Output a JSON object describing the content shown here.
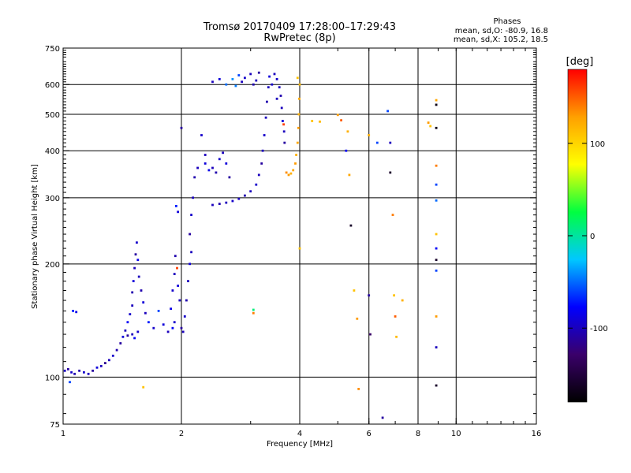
{
  "chart_data": {
    "type": "scatter",
    "title": "Tromsø 20170409 17:28:00–17:29:43",
    "subtitle": "RwPretec (8p)",
    "phase_box": {
      "title": "Phases",
      "line1": "mean, sd,O: -80.9, 16.8",
      "line2": "mean, sd,X: 105.2, 18.5"
    },
    "xlabel": "Frequency [MHz]",
    "ylabel": "Stationary phase Virtual Height [km]",
    "x_scale": "log",
    "y_scale": "log",
    "xlim": [
      1,
      16
    ],
    "ylim": [
      75,
      750
    ],
    "x_ticks": [
      {
        "value": 1,
        "label": "1"
      },
      {
        "value": 2,
        "label": "2"
      },
      {
        "value": 4,
        "label": "4"
      },
      {
        "value": 6,
        "label": "6"
      },
      {
        "value": 8,
        "label": "8"
      },
      {
        "value": 10,
        "label": "10"
      },
      {
        "value": 16,
        "label": "16"
      }
    ],
    "x_gridlines": [
      2,
      4,
      6,
      8,
      10
    ],
    "y_ticks": [
      {
        "value": 75,
        "label": "75"
      },
      {
        "value": 100,
        "label": "100"
      },
      {
        "value": 200,
        "label": "200"
      },
      {
        "value": 300,
        "label": "300"
      },
      {
        "value": 400,
        "label": "400"
      },
      {
        "value": 500,
        "label": "500"
      },
      {
        "value": 600,
        "label": "600"
      },
      {
        "value": 750,
        "label": "750"
      }
    ],
    "y_gridlines": [
      100,
      200,
      300,
      400,
      500,
      600
    ],
    "grid": true,
    "colorbar": {
      "label": "[deg]",
      "vmin": -180,
      "vmax": 180,
      "ticks": [
        {
          "value": 100,
          "label": "100"
        },
        {
          "value": 0,
          "label": "0"
        },
        {
          "value": -100,
          "label": "-100"
        }
      ],
      "stops": [
        "#000000",
        "#3a006a",
        "#0000ff",
        "#00c8ff",
        "#00ff40",
        "#ffff00",
        "#ffa000",
        "#ff0000"
      ]
    },
    "points": [
      {
        "x": 1.01,
        "y": 104,
        "phase": -100
      },
      {
        "x": 1.03,
        "y": 105,
        "phase": -110
      },
      {
        "x": 1.05,
        "y": 103,
        "phase": -95
      },
      {
        "x": 1.07,
        "y": 102,
        "phase": -105
      },
      {
        "x": 1.04,
        "y": 97,
        "phase": -60
      },
      {
        "x": 1.06,
        "y": 150,
        "phase": -70
      },
      {
        "x": 1.08,
        "y": 149,
        "phase": -85
      },
      {
        "x": 1.1,
        "y": 104,
        "phase": -105
      },
      {
        "x": 1.13,
        "y": 103,
        "phase": -95
      },
      {
        "x": 1.16,
        "y": 102,
        "phase": -100
      },
      {
        "x": 1.19,
        "y": 104,
        "phase": -110
      },
      {
        "x": 1.22,
        "y": 106,
        "phase": -90
      },
      {
        "x": 1.25,
        "y": 107,
        "phase": -100
      },
      {
        "x": 1.28,
        "y": 109,
        "phase": -115
      },
      {
        "x": 1.31,
        "y": 111,
        "phase": -100
      },
      {
        "x": 1.34,
        "y": 114,
        "phase": -95
      },
      {
        "x": 1.37,
        "y": 118,
        "phase": -105
      },
      {
        "x": 1.4,
        "y": 123,
        "phase": -110
      },
      {
        "x": 1.42,
        "y": 128,
        "phase": -90
      },
      {
        "x": 1.44,
        "y": 133,
        "phase": -100
      },
      {
        "x": 1.46,
        "y": 140,
        "phase": -80
      },
      {
        "x": 1.48,
        "y": 147,
        "phase": -95
      },
      {
        "x": 1.5,
        "y": 155,
        "phase": -100
      },
      {
        "x": 1.5,
        "y": 168,
        "phase": -105
      },
      {
        "x": 1.51,
        "y": 180,
        "phase": -90
      },
      {
        "x": 1.52,
        "y": 195,
        "phase": -100
      },
      {
        "x": 1.53,
        "y": 212,
        "phase": -110
      },
      {
        "x": 1.54,
        "y": 228,
        "phase": -95
      },
      {
        "x": 1.55,
        "y": 205,
        "phase": -85
      },
      {
        "x": 1.56,
        "y": 185,
        "phase": -100
      },
      {
        "x": 1.58,
        "y": 170,
        "phase": -105
      },
      {
        "x": 1.6,
        "y": 158,
        "phase": -90
      },
      {
        "x": 1.5,
        "y": 130,
        "phase": -100
      },
      {
        "x": 1.52,
        "y": 127,
        "phase": -80
      },
      {
        "x": 1.46,
        "y": 129,
        "phase": -110
      },
      {
        "x": 1.55,
        "y": 132,
        "phase": -95
      },
      {
        "x": 1.62,
        "y": 148,
        "phase": -100
      },
      {
        "x": 1.65,
        "y": 140,
        "phase": -70
      },
      {
        "x": 1.7,
        "y": 135,
        "phase": -95
      },
      {
        "x": 1.75,
        "y": 150,
        "phase": -60
      },
      {
        "x": 1.8,
        "y": 138,
        "phase": -90
      },
      {
        "x": 1.85,
        "y": 132,
        "phase": -100
      },
      {
        "x": 1.88,
        "y": 152,
        "phase": -85
      },
      {
        "x": 1.9,
        "y": 170,
        "phase": -95
      },
      {
        "x": 1.92,
        "y": 188,
        "phase": -100
      },
      {
        "x": 1.93,
        "y": 210,
        "phase": -105
      },
      {
        "x": 1.95,
        "y": 195,
        "phase": 160
      },
      {
        "x": 1.96,
        "y": 175,
        "phase": -90
      },
      {
        "x": 1.98,
        "y": 160,
        "phase": -100
      },
      {
        "x": 1.92,
        "y": 140,
        "phase": -95
      },
      {
        "x": 1.9,
        "y": 135,
        "phase": -80
      },
      {
        "x": 1.94,
        "y": 285,
        "phase": -70
      },
      {
        "x": 1.96,
        "y": 275,
        "phase": -90
      },
      {
        "x": 2.0,
        "y": 135,
        "phase": -110
      },
      {
        "x": 2.02,
        "y": 132,
        "phase": -100
      },
      {
        "x": 2.04,
        "y": 145,
        "phase": -95
      },
      {
        "x": 2.06,
        "y": 160,
        "phase": -105
      },
      {
        "x": 2.08,
        "y": 180,
        "phase": -100
      },
      {
        "x": 2.1,
        "y": 200,
        "phase": -90
      },
      {
        "x": 2.12,
        "y": 215,
        "phase": -100
      },
      {
        "x": 2.1,
        "y": 240,
        "phase": -110
      },
      {
        "x": 2.12,
        "y": 270,
        "phase": -95
      },
      {
        "x": 2.14,
        "y": 300,
        "phase": -100
      },
      {
        "x": 2.16,
        "y": 340,
        "phase": -105
      },
      {
        "x": 2.2,
        "y": 360,
        "phase": -100
      },
      {
        "x": 2.0,
        "y": 460,
        "phase": -110
      },
      {
        "x": 2.25,
        "y": 440,
        "phase": -95
      },
      {
        "x": 2.3,
        "y": 390,
        "phase": -100
      },
      {
        "x": 2.3,
        "y": 370,
        "phase": -90
      },
      {
        "x": 2.35,
        "y": 355,
        "phase": -85
      },
      {
        "x": 2.4,
        "y": 360,
        "phase": -100
      },
      {
        "x": 2.45,
        "y": 350,
        "phase": -105
      },
      {
        "x": 2.5,
        "y": 380,
        "phase": -95
      },
      {
        "x": 2.55,
        "y": 395,
        "phase": -100
      },
      {
        "x": 2.6,
        "y": 370,
        "phase": -90
      },
      {
        "x": 2.65,
        "y": 340,
        "phase": -110
      },
      {
        "x": 2.4,
        "y": 287,
        "phase": -100
      },
      {
        "x": 2.5,
        "y": 289,
        "phase": -105
      },
      {
        "x": 2.6,
        "y": 291,
        "phase": -100
      },
      {
        "x": 2.7,
        "y": 294,
        "phase": -95
      },
      {
        "x": 2.8,
        "y": 298,
        "phase": -100
      },
      {
        "x": 2.9,
        "y": 304,
        "phase": -105
      },
      {
        "x": 3.0,
        "y": 312,
        "phase": -100
      },
      {
        "x": 3.1,
        "y": 325,
        "phase": -95
      },
      {
        "x": 3.15,
        "y": 345,
        "phase": -100
      },
      {
        "x": 3.2,
        "y": 370,
        "phase": -110
      },
      {
        "x": 3.22,
        "y": 400,
        "phase": -100
      },
      {
        "x": 3.25,
        "y": 440,
        "phase": -95
      },
      {
        "x": 3.28,
        "y": 490,
        "phase": -100
      },
      {
        "x": 3.3,
        "y": 540,
        "phase": -105
      },
      {
        "x": 3.33,
        "y": 590,
        "phase": -100
      },
      {
        "x": 3.35,
        "y": 630,
        "phase": -90
      },
      {
        "x": 2.4,
        "y": 610,
        "phase": -100
      },
      {
        "x": 2.5,
        "y": 620,
        "phase": -90
      },
      {
        "x": 2.6,
        "y": 600,
        "phase": -50
      },
      {
        "x": 2.7,
        "y": 620,
        "phase": -40
      },
      {
        "x": 2.75,
        "y": 595,
        "phase": -45
      },
      {
        "x": 2.8,
        "y": 635,
        "phase": -60
      },
      {
        "x": 2.85,
        "y": 610,
        "phase": -100
      },
      {
        "x": 2.9,
        "y": 625,
        "phase": -95
      },
      {
        "x": 3.0,
        "y": 640,
        "phase": -100
      },
      {
        "x": 3.05,
        "y": 600,
        "phase": -105
      },
      {
        "x": 3.1,
        "y": 615,
        "phase": -100
      },
      {
        "x": 3.15,
        "y": 645,
        "phase": -110
      },
      {
        "x": 3.45,
        "y": 640,
        "phase": -100
      },
      {
        "x": 3.5,
        "y": 620,
        "phase": -95
      },
      {
        "x": 3.55,
        "y": 590,
        "phase": -100
      },
      {
        "x": 3.58,
        "y": 560,
        "phase": -105
      },
      {
        "x": 3.6,
        "y": 520,
        "phase": -100
      },
      {
        "x": 3.62,
        "y": 480,
        "phase": -90
      },
      {
        "x": 3.65,
        "y": 450,
        "phase": -100
      },
      {
        "x": 3.66,
        "y": 420,
        "phase": -110
      },
      {
        "x": 3.64,
        "y": 470,
        "phase": 160
      },
      {
        "x": 3.5,
        "y": 550,
        "phase": -100
      },
      {
        "x": 3.4,
        "y": 600,
        "phase": -95
      },
      {
        "x": 3.75,
        "y": 345,
        "phase": 130
      },
      {
        "x": 3.8,
        "y": 348,
        "phase": 120
      },
      {
        "x": 3.85,
        "y": 355,
        "phase": 125
      },
      {
        "x": 3.9,
        "y": 370,
        "phase": 130
      },
      {
        "x": 3.92,
        "y": 390,
        "phase": 120
      },
      {
        "x": 3.95,
        "y": 420,
        "phase": 125
      },
      {
        "x": 3.97,
        "y": 460,
        "phase": 130
      },
      {
        "x": 3.98,
        "y": 500,
        "phase": 120
      },
      {
        "x": 3.99,
        "y": 550,
        "phase": 125
      },
      {
        "x": 4.0,
        "y": 600,
        "phase": 115
      },
      {
        "x": 3.95,
        "y": 625,
        "phase": 110
      },
      {
        "x": 3.7,
        "y": 350,
        "phase": 135
      },
      {
        "x": 4.3,
        "y": 480,
        "phase": 110
      },
      {
        "x": 4.5,
        "y": 478,
        "phase": 115
      },
      {
        "x": 4.0,
        "y": 220,
        "phase": 110
      },
      {
        "x": 5.0,
        "y": 498,
        "phase": 130
      },
      {
        "x": 5.1,
        "y": 482,
        "phase": 150
      },
      {
        "x": 5.3,
        "y": 450,
        "phase": 120
      },
      {
        "x": 5.35,
        "y": 345,
        "phase": 125
      },
      {
        "x": 5.25,
        "y": 400,
        "phase": -80
      },
      {
        "x": 5.4,
        "y": 253,
        "phase": -160
      },
      {
        "x": 5.5,
        "y": 170,
        "phase": 110
      },
      {
        "x": 5.6,
        "y": 143,
        "phase": 130
      },
      {
        "x": 5.65,
        "y": 93,
        "phase": 135
      },
      {
        "x": 6.0,
        "y": 165,
        "phase": -110
      },
      {
        "x": 6.05,
        "y": 130,
        "phase": -130
      },
      {
        "x": 6.0,
        "y": 440,
        "phase": 120
      },
      {
        "x": 6.3,
        "y": 420,
        "phase": -60
      },
      {
        "x": 6.5,
        "y": 78,
        "phase": -110
      },
      {
        "x": 6.7,
        "y": 510,
        "phase": -60
      },
      {
        "x": 6.8,
        "y": 420,
        "phase": -100
      },
      {
        "x": 6.8,
        "y": 350,
        "phase": -160
      },
      {
        "x": 6.9,
        "y": 270,
        "phase": 140
      },
      {
        "x": 6.95,
        "y": 165,
        "phase": 110
      },
      {
        "x": 7.0,
        "y": 145,
        "phase": 150
      },
      {
        "x": 7.05,
        "y": 128,
        "phase": 115
      },
      {
        "x": 7.3,
        "y": 160,
        "phase": 120
      },
      {
        "x": 8.5,
        "y": 475,
        "phase": 130
      },
      {
        "x": 8.6,
        "y": 465,
        "phase": 110
      },
      {
        "x": 8.9,
        "y": 545,
        "phase": 125
      },
      {
        "x": 8.9,
        "y": 530,
        "phase": -170
      },
      {
        "x": 8.9,
        "y": 460,
        "phase": -170
      },
      {
        "x": 8.9,
        "y": 365,
        "phase": 140
      },
      {
        "x": 8.9,
        "y": 325,
        "phase": -60
      },
      {
        "x": 8.9,
        "y": 295,
        "phase": -50
      },
      {
        "x": 8.9,
        "y": 240,
        "phase": 110
      },
      {
        "x": 8.9,
        "y": 220,
        "phase": -80
      },
      {
        "x": 8.9,
        "y": 205,
        "phase": -160
      },
      {
        "x": 8.9,
        "y": 192,
        "phase": -60
      },
      {
        "x": 8.9,
        "y": 145,
        "phase": 130
      },
      {
        "x": 8.9,
        "y": 120,
        "phase": -100
      },
      {
        "x": 8.9,
        "y": 95,
        "phase": -160
      },
      {
        "x": 1.6,
        "y": 94,
        "phase": 110
      },
      {
        "x": 3.05,
        "y": 148,
        "phase": 140
      },
      {
        "x": 3.05,
        "y": 151,
        "phase": 10
      }
    ]
  }
}
